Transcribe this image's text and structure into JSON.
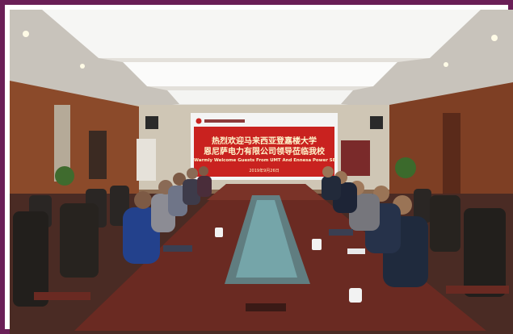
{
  "photo": {
    "subject": "meeting-room",
    "screen": {
      "logo_text": "",
      "title_line1": "热烈欢迎马来西亚登嘉楼大学",
      "title_line2": "恩尼萨电力有限公司领导莅临我校",
      "subtitle_en": "Warmly Welcome Guests From UMT And Ennesa Power SB",
      "date": "2019年9月26日"
    },
    "colors": {
      "frame": "#6a1f57",
      "screen_red": "#c9221f",
      "wall_wood": "#8b4a2a",
      "table": "#6a2a22",
      "ceiling": "#e9e6e0"
    }
  }
}
